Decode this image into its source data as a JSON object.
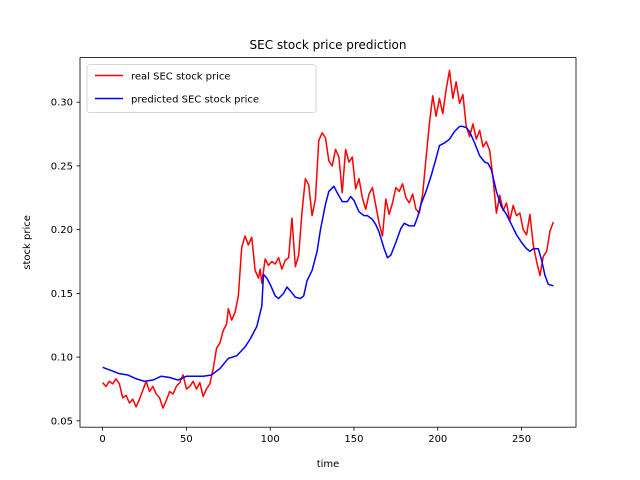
{
  "chart_data": {
    "type": "line",
    "title": "SEC stock price prediction",
    "xlabel": "time",
    "ylabel": "stock price",
    "xlim": [
      -13.5,
      282.5
    ],
    "ylim": [
      0.045,
      0.335
    ],
    "xticks": [
      0,
      50,
      100,
      150,
      200,
      250
    ],
    "xtick_labels": [
      "0",
      "50",
      "100",
      "150",
      "200",
      "250"
    ],
    "yticks": [
      0.05,
      0.1,
      0.15,
      0.2,
      0.25,
      0.3
    ],
    "ytick_labels": [
      "0.05",
      "0.10",
      "0.15",
      "0.20",
      "0.25",
      "0.30"
    ],
    "grid": false,
    "legend_position": "top-left",
    "series": [
      {
        "name": "real SEC stock price",
        "color": "#ff0000",
        "points": [
          [
            0,
            0.08
          ],
          [
            2,
            0.077
          ],
          [
            4,
            0.081
          ],
          [
            6,
            0.079
          ],
          [
            8,
            0.083
          ],
          [
            10,
            0.079
          ],
          [
            12,
            0.068
          ],
          [
            14,
            0.07
          ],
          [
            16,
            0.064
          ],
          [
            18,
            0.067
          ],
          [
            20,
            0.061
          ],
          [
            22,
            0.067
          ],
          [
            24,
            0.074
          ],
          [
            26,
            0.081
          ],
          [
            28,
            0.073
          ],
          [
            30,
            0.077
          ],
          [
            32,
            0.071
          ],
          [
            34,
            0.068
          ],
          [
            36,
            0.06
          ],
          [
            38,
            0.066
          ],
          [
            40,
            0.073
          ],
          [
            42,
            0.071
          ],
          [
            44,
            0.077
          ],
          [
            46,
            0.08
          ],
          [
            48,
            0.086
          ],
          [
            50,
            0.075
          ],
          [
            52,
            0.077
          ],
          [
            54,
            0.081
          ],
          [
            56,
            0.075
          ],
          [
            58,
            0.08
          ],
          [
            60,
            0.069
          ],
          [
            62,
            0.075
          ],
          [
            64,
            0.079
          ],
          [
            66,
            0.091
          ],
          [
            68,
            0.107
          ],
          [
            70,
            0.111
          ],
          [
            72,
            0.121
          ],
          [
            74,
            0.126
          ],
          [
            75,
            0.138
          ],
          [
            77,
            0.129
          ],
          [
            79,
            0.135
          ],
          [
            81,
            0.148
          ],
          [
            83,
            0.186
          ],
          [
            85,
            0.195
          ],
          [
            87,
            0.188
          ],
          [
            89,
            0.194
          ],
          [
            91,
            0.168
          ],
          [
            93,
            0.162
          ],
          [
            94,
            0.169
          ],
          [
            95,
            0.158
          ],
          [
            97,
            0.177
          ],
          [
            99,
            0.172
          ],
          [
            101,
            0.175
          ],
          [
            103,
            0.173
          ],
          [
            105,
            0.178
          ],
          [
            107,
            0.169
          ],
          [
            109,
            0.176
          ],
          [
            111,
            0.178
          ],
          [
            113,
            0.209
          ],
          [
            115,
            0.171
          ],
          [
            117,
            0.18
          ],
          [
            119,
            0.214
          ],
          [
            121,
            0.24
          ],
          [
            123,
            0.235
          ],
          [
            125,
            0.211
          ],
          [
            127,
            0.224
          ],
          [
            129,
            0.27
          ],
          [
            131,
            0.276
          ],
          [
            133,
            0.272
          ],
          [
            135,
            0.254
          ],
          [
            137,
            0.25
          ],
          [
            139,
            0.263
          ],
          [
            141,
            0.257
          ],
          [
            143,
            0.229
          ],
          [
            145,
            0.263
          ],
          [
            147,
            0.253
          ],
          [
            149,
            0.257
          ],
          [
            151,
            0.232
          ],
          [
            153,
            0.24
          ],
          [
            155,
            0.225
          ],
          [
            157,
            0.216
          ],
          [
            159,
            0.228
          ],
          [
            161,
            0.233
          ],
          [
            163,
            0.219
          ],
          [
            165,
            0.205
          ],
          [
            167,
            0.195
          ],
          [
            169,
            0.224
          ],
          [
            171,
            0.212
          ],
          [
            173,
            0.221
          ],
          [
            175,
            0.233
          ],
          [
            177,
            0.23
          ],
          [
            179,
            0.236
          ],
          [
            181,
            0.225
          ],
          [
            183,
            0.221
          ],
          [
            185,
            0.228
          ],
          [
            187,
            0.216
          ],
          [
            189,
            0.213
          ],
          [
            191,
            0.228
          ],
          [
            193,
            0.256
          ],
          [
            195,
            0.283
          ],
          [
            197,
            0.305
          ],
          [
            199,
            0.289
          ],
          [
            201,
            0.303
          ],
          [
            203,
            0.291
          ],
          [
            205,
            0.31
          ],
          [
            207,
            0.325
          ],
          [
            209,
            0.303
          ],
          [
            211,
            0.316
          ],
          [
            213,
            0.299
          ],
          [
            215,
            0.306
          ],
          [
            217,
            0.281
          ],
          [
            219,
            0.273
          ],
          [
            221,
            0.283
          ],
          [
            223,
            0.271
          ],
          [
            225,
            0.278
          ],
          [
            227,
            0.265
          ],
          [
            229,
            0.269
          ],
          [
            231,
            0.262
          ],
          [
            233,
            0.24
          ],
          [
            235,
            0.213
          ],
          [
            237,
            0.227
          ],
          [
            239,
            0.215
          ],
          [
            241,
            0.221
          ],
          [
            243,
            0.207
          ],
          [
            245,
            0.219
          ],
          [
            247,
            0.211
          ],
          [
            249,
            0.213
          ],
          [
            251,
            0.2
          ],
          [
            253,
            0.196
          ],
          [
            255,
            0.212
          ],
          [
            257,
            0.188
          ],
          [
            259,
            0.175
          ],
          [
            261,
            0.164
          ],
          [
            263,
            0.179
          ],
          [
            265,
            0.183
          ],
          [
            267,
            0.199
          ],
          [
            269,
            0.206
          ]
        ]
      },
      {
        "name": "predicted SEC stock price",
        "color": "#0000ff",
        "points": [
          [
            0,
            0.092
          ],
          [
            10,
            0.087
          ],
          [
            15,
            0.086
          ],
          [
            20,
            0.083
          ],
          [
            25,
            0.081
          ],
          [
            30,
            0.082
          ],
          [
            35,
            0.085
          ],
          [
            40,
            0.084
          ],
          [
            45,
            0.082
          ],
          [
            50,
            0.085
          ],
          [
            55,
            0.085
          ],
          [
            60,
            0.085
          ],
          [
            65,
            0.086
          ],
          [
            70,
            0.091
          ],
          [
            75,
            0.099
          ],
          [
            80,
            0.101
          ],
          [
            85,
            0.108
          ],
          [
            88,
            0.114
          ],
          [
            92,
            0.124
          ],
          [
            95,
            0.14
          ],
          [
            96,
            0.165
          ],
          [
            98,
            0.162
          ],
          [
            100,
            0.157
          ],
          [
            103,
            0.148
          ],
          [
            105,
            0.146
          ],
          [
            108,
            0.15
          ],
          [
            110,
            0.155
          ],
          [
            112,
            0.152
          ],
          [
            115,
            0.147
          ],
          [
            118,
            0.146
          ],
          [
            120,
            0.148
          ],
          [
            122,
            0.16
          ],
          [
            125,
            0.168
          ],
          [
            128,
            0.183
          ],
          [
            130,
            0.2
          ],
          [
            133,
            0.22
          ],
          [
            135,
            0.23
          ],
          [
            138,
            0.234
          ],
          [
            140,
            0.229
          ],
          [
            143,
            0.222
          ],
          [
            146,
            0.222
          ],
          [
            148,
            0.226
          ],
          [
            150,
            0.223
          ],
          [
            153,
            0.214
          ],
          [
            156,
            0.211
          ],
          [
            158,
            0.211
          ],
          [
            161,
            0.208
          ],
          [
            163,
            0.204
          ],
          [
            165,
            0.198
          ],
          [
            168,
            0.185
          ],
          [
            170,
            0.178
          ],
          [
            172,
            0.18
          ],
          [
            175,
            0.19
          ],
          [
            178,
            0.201
          ],
          [
            180,
            0.205
          ],
          [
            183,
            0.203
          ],
          [
            186,
            0.203
          ],
          [
            188,
            0.21
          ],
          [
            190,
            0.22
          ],
          [
            193,
            0.23
          ],
          [
            196,
            0.242
          ],
          [
            199,
            0.256
          ],
          [
            201,
            0.266
          ],
          [
            204,
            0.268
          ],
          [
            207,
            0.271
          ],
          [
            210,
            0.277
          ],
          [
            213,
            0.281
          ],
          [
            215,
            0.281
          ],
          [
            217,
            0.28
          ],
          [
            219,
            0.277
          ],
          [
            222,
            0.268
          ],
          [
            225,
            0.258
          ],
          [
            228,
            0.253
          ],
          [
            230,
            0.252
          ],
          [
            232,
            0.247
          ],
          [
            235,
            0.23
          ],
          [
            238,
            0.218
          ],
          [
            241,
            0.212
          ],
          [
            244,
            0.204
          ],
          [
            247,
            0.196
          ],
          [
            250,
            0.19
          ],
          [
            253,
            0.185
          ],
          [
            255,
            0.183
          ],
          [
            257,
            0.185
          ],
          [
            260,
            0.185
          ],
          [
            262,
            0.176
          ],
          [
            264,
            0.164
          ],
          [
            266,
            0.157
          ],
          [
            269,
            0.156
          ]
        ]
      }
    ]
  }
}
